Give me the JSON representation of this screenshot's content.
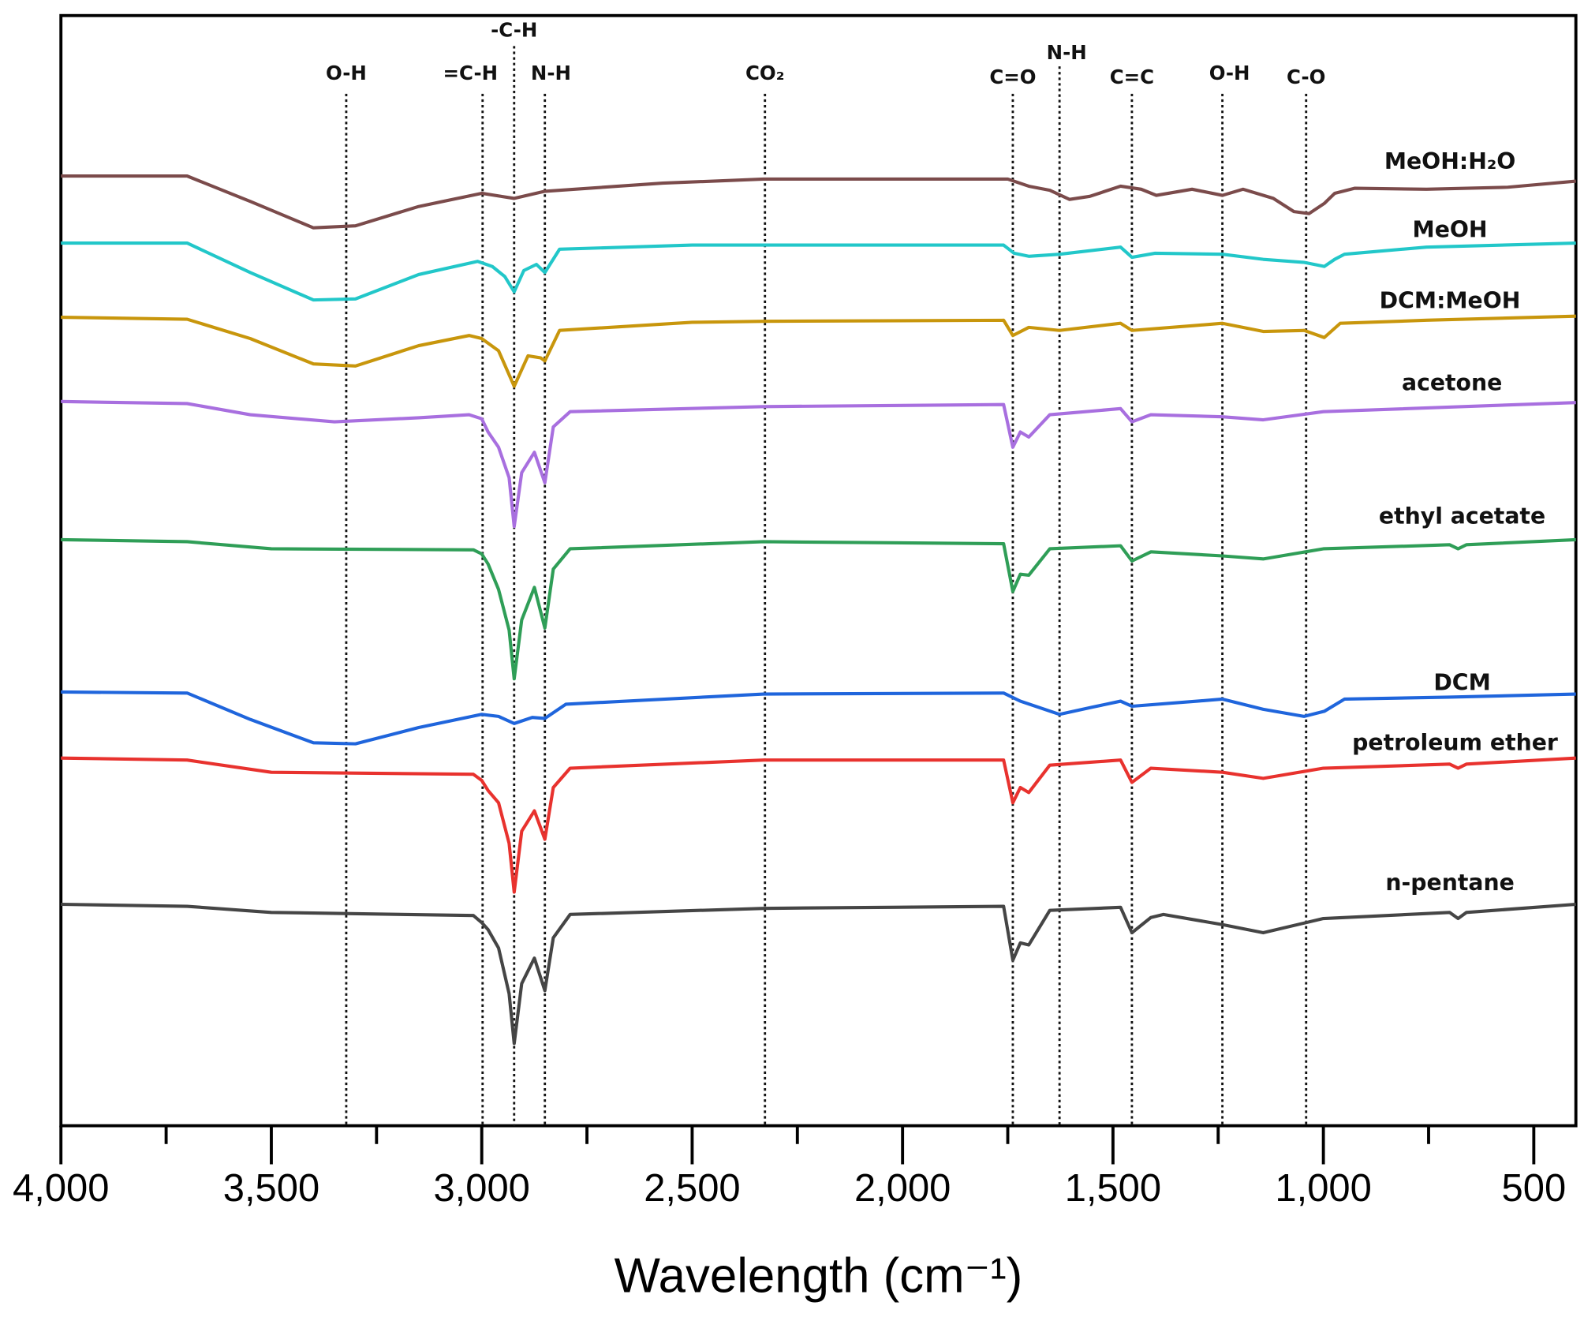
{
  "chart_data": {
    "type": "line",
    "xlabel": "Wavelength (cm⁻¹)",
    "ylabel": "",
    "xlim": [
      4000,
      400
    ],
    "ylim": [
      0,
      1093
    ],
    "y_units": "arbitrary (stacked, offset)",
    "xticks": [
      {
        "value": 4000,
        "label": "4,000"
      },
      {
        "value": 3500,
        "label": "3,500"
      },
      {
        "value": 3000,
        "label": "3,000"
      },
      {
        "value": 2500,
        "label": "2,500"
      },
      {
        "value": 2000,
        "label": "2,000"
      },
      {
        "value": 1500,
        "label": "1,500"
      },
      {
        "value": 1000,
        "label": "1,000"
      },
      {
        "value": 500,
        "label": "500"
      }
    ],
    "minor_tick_step": 250,
    "grid": false,
    "legend": "inline labels at right of each trace",
    "band_markers": [
      {
        "label": "O-H",
        "x": 3322
      },
      {
        "label": "=C-H",
        "x": 2998
      },
      {
        "label": "-C-H",
        "x": 2923
      },
      {
        "label": "N-H",
        "x": 2850
      },
      {
        "label": "CO₂",
        "x": 2327
      },
      {
        "label": "C=O",
        "x": 1738
      },
      {
        "label": "N-H",
        "x": 1627
      },
      {
        "label": "C=C",
        "x": 1455
      },
      {
        "label": "O-H",
        "x": 1240
      },
      {
        "label": "C-O",
        "x": 1041
      }
    ],
    "series": [
      {
        "name": "MeOH:H₂O",
        "color": "#7b4b4b",
        "points": [
          [
            4000,
            935
          ],
          [
            3700,
            935
          ],
          [
            3550,
            910
          ],
          [
            3400,
            884
          ],
          [
            3300,
            886
          ],
          [
            3150,
            905
          ],
          [
            3000,
            918
          ],
          [
            2923,
            913
          ],
          [
            2850,
            920
          ],
          [
            2570,
            928
          ],
          [
            2330,
            932
          ],
          [
            1750,
            932
          ],
          [
            1700,
            925
          ],
          [
            1650,
            921
          ],
          [
            1603,
            912
          ],
          [
            1555,
            915
          ],
          [
            1482,
            925
          ],
          [
            1433,
            922
          ],
          [
            1397,
            916
          ],
          [
            1312,
            922
          ],
          [
            1240,
            916
          ],
          [
            1191,
            922
          ],
          [
            1119,
            913
          ],
          [
            1070,
            900
          ],
          [
            1034,
            898
          ],
          [
            998,
            908
          ],
          [
            973,
            918
          ],
          [
            925,
            923
          ],
          [
            755,
            922
          ],
          [
            562,
            924
          ],
          [
            400,
            930
          ]
        ]
      },
      {
        "name": "MeOH",
        "color": "#22c7c9",
        "points": [
          [
            4000,
            869
          ],
          [
            3700,
            869
          ],
          [
            3550,
            840
          ],
          [
            3400,
            813
          ],
          [
            3300,
            814
          ],
          [
            3150,
            838
          ],
          [
            3010,
            851
          ],
          [
            2975,
            846
          ],
          [
            2945,
            836
          ],
          [
            2923,
            821
          ],
          [
            2900,
            842
          ],
          [
            2870,
            848
          ],
          [
            2850,
            840
          ],
          [
            2815,
            863
          ],
          [
            2500,
            867
          ],
          [
            1760,
            867
          ],
          [
            1735,
            859
          ],
          [
            1700,
            856
          ],
          [
            1627,
            858
          ],
          [
            1482,
            865
          ],
          [
            1455,
            855
          ],
          [
            1400,
            859
          ],
          [
            1240,
            858
          ],
          [
            1143,
            853
          ],
          [
            1046,
            850
          ],
          [
            998,
            846
          ],
          [
            973,
            853
          ],
          [
            950,
            858
          ],
          [
            755,
            865
          ],
          [
            400,
            869
          ]
        ]
      },
      {
        "name": "DCM:MeOH",
        "color": "#c8960c",
        "points": [
          [
            4000,
            796
          ],
          [
            3700,
            794
          ],
          [
            3550,
            775
          ],
          [
            3400,
            750
          ],
          [
            3300,
            748
          ],
          [
            3150,
            768
          ],
          [
            3030,
            778
          ],
          [
            3000,
            775
          ],
          [
            2960,
            763
          ],
          [
            2923,
            728
          ],
          [
            2890,
            758
          ],
          [
            2860,
            756
          ],
          [
            2850,
            753
          ],
          [
            2815,
            783
          ],
          [
            2500,
            791
          ],
          [
            2330,
            792
          ],
          [
            1760,
            793
          ],
          [
            1738,
            778
          ],
          [
            1700,
            786
          ],
          [
            1627,
            783
          ],
          [
            1482,
            790
          ],
          [
            1455,
            783
          ],
          [
            1300,
            788
          ],
          [
            1240,
            790
          ],
          [
            1143,
            782
          ],
          [
            1046,
            783
          ],
          [
            998,
            776
          ],
          [
            960,
            790
          ],
          [
            755,
            793
          ],
          [
            400,
            797
          ]
        ]
      },
      {
        "name": "acetone",
        "color": "#a86fdf",
        "points": [
          [
            4000,
            713
          ],
          [
            3700,
            711
          ],
          [
            3550,
            700
          ],
          [
            3350,
            693
          ],
          [
            3150,
            697
          ],
          [
            3030,
            700
          ],
          [
            3000,
            696
          ],
          [
            2985,
            683
          ],
          [
            2960,
            668
          ],
          [
            2935,
            638
          ],
          [
            2923,
            590
          ],
          [
            2905,
            643
          ],
          [
            2875,
            663
          ],
          [
            2850,
            633
          ],
          [
            2830,
            688
          ],
          [
            2790,
            703
          ],
          [
            2330,
            708
          ],
          [
            1760,
            710
          ],
          [
            1738,
            668
          ],
          [
            1720,
            683
          ],
          [
            1700,
            678
          ],
          [
            1650,
            700
          ],
          [
            1482,
            706
          ],
          [
            1455,
            693
          ],
          [
            1410,
            700
          ],
          [
            1240,
            698
          ],
          [
            1143,
            695
          ],
          [
            1000,
            703
          ],
          [
            400,
            712
          ]
        ]
      },
      {
        "name": "ethyl acetate",
        "color": "#2f9e57",
        "points": [
          [
            4000,
            577
          ],
          [
            3700,
            575
          ],
          [
            3500,
            568
          ],
          [
            3020,
            567
          ],
          [
            3000,
            563
          ],
          [
            2985,
            553
          ],
          [
            2960,
            528
          ],
          [
            2935,
            488
          ],
          [
            2923,
            440
          ],
          [
            2905,
            498
          ],
          [
            2875,
            530
          ],
          [
            2850,
            490
          ],
          [
            2830,
            548
          ],
          [
            2790,
            568
          ],
          [
            2330,
            575
          ],
          [
            1760,
            573
          ],
          [
            1738,
            526
          ],
          [
            1720,
            543
          ],
          [
            1700,
            542
          ],
          [
            1650,
            568
          ],
          [
            1482,
            571
          ],
          [
            1455,
            556
          ],
          [
            1410,
            565
          ],
          [
            1240,
            561
          ],
          [
            1143,
            558
          ],
          [
            1000,
            568
          ],
          [
            700,
            572
          ],
          [
            680,
            568
          ],
          [
            660,
            572
          ],
          [
            400,
            577
          ]
        ]
      },
      {
        "name": "DCM",
        "color": "#1f65dc",
        "points": [
          [
            4000,
            427
          ],
          [
            3700,
            426
          ],
          [
            3550,
            400
          ],
          [
            3400,
            377
          ],
          [
            3300,
            376
          ],
          [
            3150,
            392
          ],
          [
            3000,
            405
          ],
          [
            2960,
            403
          ],
          [
            2923,
            396
          ],
          [
            2880,
            402
          ],
          [
            2850,
            401
          ],
          [
            2800,
            415
          ],
          [
            2330,
            425
          ],
          [
            1760,
            426
          ],
          [
            1720,
            418
          ],
          [
            1627,
            405
          ],
          [
            1550,
            412
          ],
          [
            1482,
            418
          ],
          [
            1455,
            413
          ],
          [
            1300,
            418
          ],
          [
            1240,
            420
          ],
          [
            1143,
            410
          ],
          [
            1046,
            403
          ],
          [
            998,
            408
          ],
          [
            950,
            420
          ],
          [
            700,
            422
          ],
          [
            400,
            425
          ]
        ]
      },
      {
        "name": "petroleum ether",
        "color": "#e8322e",
        "points": [
          [
            4000,
            362
          ],
          [
            3700,
            360
          ],
          [
            3500,
            348
          ],
          [
            3020,
            346
          ],
          [
            3000,
            340
          ],
          [
            2985,
            330
          ],
          [
            2960,
            318
          ],
          [
            2935,
            278
          ],
          [
            2923,
            230
          ],
          [
            2905,
            290
          ],
          [
            2875,
            310
          ],
          [
            2850,
            282
          ],
          [
            2830,
            333
          ],
          [
            2790,
            352
          ],
          [
            2330,
            360
          ],
          [
            1760,
            360
          ],
          [
            1738,
            318
          ],
          [
            1720,
            333
          ],
          [
            1700,
            328
          ],
          [
            1650,
            355
          ],
          [
            1482,
            360
          ],
          [
            1455,
            338
          ],
          [
            1410,
            352
          ],
          [
            1240,
            348
          ],
          [
            1143,
            342
          ],
          [
            1000,
            352
          ],
          [
            700,
            356
          ],
          [
            680,
            352
          ],
          [
            660,
            356
          ],
          [
            400,
            362
          ]
        ]
      },
      {
        "name": "n-pentane",
        "color": "#454545",
        "points": [
          [
            4000,
            218
          ],
          [
            3700,
            216
          ],
          [
            3500,
            210
          ],
          [
            3020,
            207
          ],
          [
            3000,
            200
          ],
          [
            2985,
            193
          ],
          [
            2960,
            175
          ],
          [
            2935,
            130
          ],
          [
            2923,
            81
          ],
          [
            2905,
            140
          ],
          [
            2875,
            165
          ],
          [
            2850,
            133
          ],
          [
            2830,
            185
          ],
          [
            2790,
            208
          ],
          [
            2330,
            214
          ],
          [
            1760,
            216
          ],
          [
            1738,
            163
          ],
          [
            1720,
            180
          ],
          [
            1700,
            178
          ],
          [
            1650,
            212
          ],
          [
            1482,
            215
          ],
          [
            1455,
            190
          ],
          [
            1410,
            205
          ],
          [
            1380,
            208
          ],
          [
            1240,
            198
          ],
          [
            1143,
            190
          ],
          [
            1000,
            204
          ],
          [
            700,
            210
          ],
          [
            680,
            204
          ],
          [
            660,
            210
          ],
          [
            400,
            218
          ]
        ]
      }
    ]
  }
}
